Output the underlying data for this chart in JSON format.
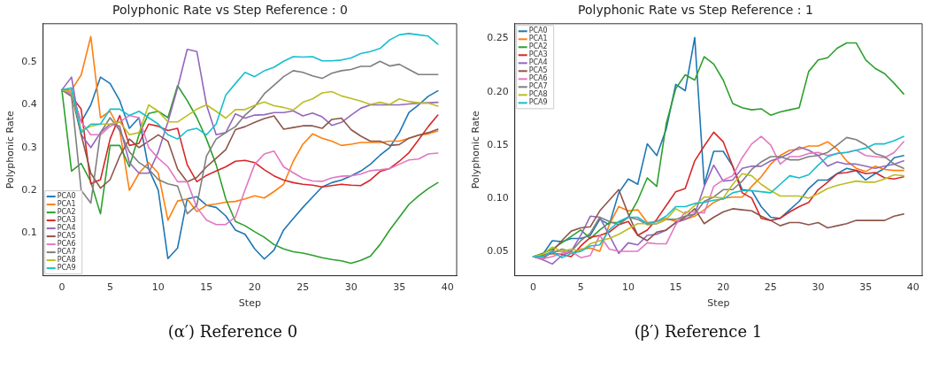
{
  "chart_data": [
    {
      "type": "line",
      "title": "Polyphonic Rate vs Step Reference : 0",
      "xlabel": "Step",
      "ylabel": "Polyphonic Rate",
      "annotations": [
        "(α′) Reference 0"
      ],
      "legend": "bottom left",
      "line_style": "solid",
      "x": [
        0,
        1,
        2,
        3,
        4,
        5,
        6,
        7,
        8,
        9,
        10,
        11,
        12,
        13,
        14,
        15,
        16,
        17,
        18,
        19,
        20,
        21,
        22,
        23,
        24,
        25,
        26,
        27,
        28,
        29,
        30,
        31,
        32,
        33,
        34,
        35,
        36,
        37,
        38,
        39
      ],
      "xlim": [
        -1.95,
        40.95
      ],
      "ylim": [
        0.0,
        0.59
      ],
      "xticks": [
        0,
        5,
        10,
        15,
        20,
        25,
        30,
        35,
        40
      ],
      "yticks": [
        0.1,
        0.2,
        0.3,
        0.4,
        0.5
      ],
      "series": [
        {
          "name": "PCA0",
          "color": "#1f77b4",
          "values": [
            0.435,
            0.43,
            0.36,
            0.4,
            0.465,
            0.45,
            0.41,
            0.345,
            0.37,
            0.25,
            0.2,
            0.04,
            0.065,
            0.18,
            0.185,
            0.165,
            0.16,
            0.14,
            0.107,
            0.097,
            0.063,
            0.039,
            0.06,
            0.107,
            0.134,
            0.16,
            0.184,
            0.208,
            0.218,
            0.224,
            0.234,
            0.245,
            0.261,
            0.282,
            0.3,
            0.335,
            0.382,
            0.4,
            0.42,
            0.433
          ]
        },
        {
          "name": "PCA1",
          "color": "#ff7f0e",
          "values": [
            0.435,
            0.435,
            0.47,
            0.56,
            0.37,
            0.385,
            0.34,
            0.2,
            0.24,
            0.265,
            0.24,
            0.13,
            0.175,
            0.18,
            0.15,
            0.165,
            0.168,
            0.172,
            0.174,
            0.18,
            0.187,
            0.182,
            0.197,
            0.214,
            0.268,
            0.308,
            0.332,
            0.322,
            0.315,
            0.305,
            0.308,
            0.312,
            0.312,
            0.312,
            0.315,
            0.315,
            0.322,
            0.329,
            0.332,
            0.339
          ]
        },
        {
          "name": "PCA2",
          "color": "#2ca02c",
          "values": [
            0.435,
            0.245,
            0.263,
            0.22,
            0.145,
            0.305,
            0.305,
            0.255,
            0.33,
            0.38,
            0.385,
            0.37,
            0.445,
            0.41,
            0.37,
            0.32,
            0.26,
            0.18,
            0.127,
            0.117,
            0.103,
            0.09,
            0.073,
            0.063,
            0.056,
            0.053,
            0.048,
            0.042,
            0.038,
            0.035,
            0.029,
            0.036,
            0.046,
            0.073,
            0.107,
            0.137,
            0.167,
            0.187,
            0.204,
            0.218
          ]
        },
        {
          "name": "PCA3",
          "color": "#d62728",
          "values": [
            0.435,
            0.42,
            0.39,
            0.215,
            0.225,
            0.32,
            0.375,
            0.305,
            0.31,
            0.355,
            0.35,
            0.34,
            0.345,
            0.26,
            0.22,
            0.235,
            0.245,
            0.255,
            0.268,
            0.27,
            0.265,
            0.248,
            0.234,
            0.224,
            0.218,
            0.214,
            0.212,
            0.208,
            0.211,
            0.214,
            0.212,
            0.211,
            0.224,
            0.244,
            0.251,
            0.268,
            0.288,
            0.318,
            0.349,
            0.376
          ]
        },
        {
          "name": "PCA4",
          "color": "#9467bd",
          "values": [
            0.435,
            0.465,
            0.33,
            0.3,
            0.335,
            0.355,
            0.35,
            0.265,
            0.24,
            0.24,
            0.29,
            0.36,
            0.44,
            0.53,
            0.525,
            0.4,
            0.33,
            0.335,
            0.379,
            0.369,
            0.376,
            0.377,
            0.382,
            0.382,
            0.386,
            0.374,
            0.381,
            0.372,
            0.352,
            0.359,
            0.376,
            0.392,
            0.4,
            0.4,
            0.4,
            0.4,
            0.402,
            0.404,
            0.405,
            0.406
          ]
        },
        {
          "name": "PCA5",
          "color": "#8c564b",
          "values": [
            0.435,
            0.425,
            0.33,
            0.24,
            0.205,
            0.225,
            0.28,
            0.32,
            0.3,
            0.315,
            0.33,
            0.315,
            0.25,
            0.22,
            0.23,
            0.255,
            0.275,
            0.295,
            0.342,
            0.349,
            0.359,
            0.368,
            0.374,
            0.343,
            0.347,
            0.351,
            0.351,
            0.345,
            0.366,
            0.369,
            0.342,
            0.327,
            0.315,
            0.315,
            0.305,
            0.307,
            0.322,
            0.329,
            0.335,
            0.343
          ]
        },
        {
          "name": "PCA6",
          "color": "#e377c2",
          "values": [
            0.435,
            0.425,
            0.36,
            0.33,
            0.33,
            0.35,
            0.36,
            0.375,
            0.37,
            0.3,
            0.275,
            0.255,
            0.22,
            0.22,
            0.16,
            0.13,
            0.12,
            0.12,
            0.137,
            0.201,
            0.261,
            0.285,
            0.292,
            0.255,
            0.241,
            0.228,
            0.222,
            0.221,
            0.229,
            0.233,
            0.234,
            0.238,
            0.246,
            0.248,
            0.251,
            0.261,
            0.271,
            0.273,
            0.285,
            0.287
          ]
        },
        {
          "name": "PCA7",
          "color": "#7f7f7f",
          "values": [
            0.435,
            0.42,
            0.2,
            0.17,
            0.335,
            0.37,
            0.34,
            0.29,
            0.265,
            0.25,
            0.225,
            0.215,
            0.21,
            0.145,
            0.165,
            0.28,
            0.32,
            0.335,
            0.349,
            0.376,
            0.396,
            0.426,
            0.446,
            0.466,
            0.48,
            0.476,
            0.468,
            0.462,
            0.474,
            0.48,
            0.483,
            0.49,
            0.49,
            0.502,
            0.491,
            0.495,
            0.483,
            0.471,
            0.471,
            0.471
          ]
        },
        {
          "name": "PCA8",
          "color": "#bcbd22",
          "values": [
            0.435,
            0.43,
            0.34,
            0.35,
            0.355,
            0.355,
            0.36,
            0.33,
            0.335,
            0.4,
            0.385,
            0.36,
            0.36,
            0.375,
            0.39,
            0.4,
            0.385,
            0.369,
            0.389,
            0.389,
            0.399,
            0.407,
            0.398,
            0.394,
            0.388,
            0.406,
            0.414,
            0.428,
            0.431,
            0.421,
            0.415,
            0.409,
            0.401,
            0.406,
            0.401,
            0.414,
            0.408,
            0.405,
            0.404,
            0.397
          ]
        },
        {
          "name": "PCA9",
          "color": "#17becf",
          "values": [
            0.435,
            0.44,
            0.335,
            0.355,
            0.355,
            0.39,
            0.39,
            0.375,
            0.385,
            0.37,
            0.355,
            0.33,
            0.32,
            0.34,
            0.345,
            0.33,
            0.355,
            0.423,
            0.45,
            0.476,
            0.466,
            0.48,
            0.488,
            0.502,
            0.513,
            0.512,
            0.513,
            0.503,
            0.503,
            0.505,
            0.51,
            0.52,
            0.525,
            0.532,
            0.552,
            0.564,
            0.567,
            0.564,
            0.561,
            0.542
          ]
        }
      ]
    },
    {
      "type": "line",
      "title": "Polyphonic Rate vs Step Reference : 1",
      "xlabel": "Step",
      "ylabel": "Polyphonic Rate",
      "annotations": [
        "(β′) Reference 1"
      ],
      "legend": "top left",
      "line_style": "solid",
      "x": [
        0,
        1,
        2,
        3,
        4,
        5,
        6,
        7,
        8,
        9,
        10,
        11,
        12,
        13,
        14,
        15,
        16,
        17,
        18,
        19,
        20,
        21,
        22,
        23,
        24,
        25,
        26,
        27,
        28,
        29,
        30,
        31,
        32,
        33,
        34,
        35,
        36,
        37,
        38,
        39
      ],
      "xlim": [
        -1.95,
        40.95
      ],
      "ylim": [
        0.027,
        0.264
      ],
      "xticks": [
        0,
        5,
        10,
        15,
        20,
        25,
        30,
        35,
        40
      ],
      "yticks": [
        0.05,
        {
          "value": 0.1,
          "label": "0.10"
        },
        0.15,
        {
          "value": 0.2,
          "label": "0.20"
        },
        0.25
      ],
      "series": [
        {
          "name": "PCA0",
          "color": "#1f77b4",
          "values": [
            0.045,
            0.047,
            0.06,
            0.059,
            0.062,
            0.062,
            0.065,
            0.08,
            0.075,
            0.105,
            0.118,
            0.113,
            0.151,
            0.14,
            0.165,
            0.207,
            0.201,
            0.251,
            0.113,
            0.144,
            0.144,
            0.13,
            0.108,
            0.107,
            0.092,
            0.082,
            0.081,
            0.089,
            0.097,
            0.109,
            0.117,
            0.117,
            0.123,
            0.128,
            0.126,
            0.117,
            0.123,
            0.128,
            0.138,
            0.14
          ]
        },
        {
          "name": "PCA1",
          "color": "#ff7f0e",
          "values": [
            0.045,
            0.046,
            0.05,
            0.05,
            0.048,
            0.052,
            0.053,
            0.05,
            0.075,
            0.092,
            0.088,
            0.089,
            0.077,
            0.078,
            0.081,
            0.078,
            0.08,
            0.083,
            0.089,
            0.096,
            0.1,
            0.101,
            0.101,
            0.111,
            0.12,
            0.132,
            0.14,
            0.145,
            0.146,
            0.149,
            0.149,
            0.153,
            0.146,
            0.135,
            0.128,
            0.125,
            0.13,
            0.127,
            0.126,
            0.126
          ]
        },
        {
          "name": "PCA2",
          "color": "#2ca02c",
          "values": [
            0.045,
            0.048,
            0.052,
            0.058,
            0.064,
            0.07,
            0.062,
            0.07,
            0.077,
            0.077,
            0.082,
            0.098,
            0.119,
            0.111,
            0.17,
            0.203,
            0.216,
            0.211,
            0.233,
            0.226,
            0.211,
            0.189,
            0.185,
            0.183,
            0.184,
            0.178,
            0.181,
            0.183,
            0.185,
            0.219,
            0.23,
            0.232,
            0.241,
            0.246,
            0.246,
            0.23,
            0.222,
            0.217,
            0.208,
            0.198
          ]
        },
        {
          "name": "PCA3",
          "color": "#d62728",
          "values": [
            0.045,
            0.046,
            0.048,
            0.047,
            0.045,
            0.055,
            0.063,
            0.065,
            0.068,
            0.075,
            0.078,
            0.065,
            0.07,
            0.08,
            0.093,
            0.106,
            0.109,
            0.135,
            0.149,
            0.162,
            0.153,
            0.13,
            0.105,
            0.1,
            0.081,
            0.079,
            0.081,
            0.087,
            0.092,
            0.096,
            0.108,
            0.115,
            0.123,
            0.124,
            0.126,
            0.123,
            0.124,
            0.119,
            0.118,
            0.12
          ]
        },
        {
          "name": "PCA4",
          "color": "#9467bd",
          "values": [
            0.045,
            0.042,
            0.038,
            0.046,
            0.05,
            0.065,
            0.083,
            0.082,
            0.065,
            0.048,
            0.058,
            0.056,
            0.065,
            0.066,
            0.07,
            0.077,
            0.08,
            0.085,
            0.111,
            0.131,
            0.116,
            0.117,
            0.128,
            0.13,
            0.13,
            0.135,
            0.138,
            0.142,
            0.148,
            0.145,
            0.14,
            0.13,
            0.134,
            0.132,
            0.132,
            0.13,
            0.128,
            0.13,
            0.132,
            0.135
          ]
        },
        {
          "name": "PCA5",
          "color": "#8c564b",
          "values": [
            0.045,
            0.043,
            0.05,
            0.06,
            0.069,
            0.072,
            0.073,
            0.088,
            0.098,
            0.108,
            0.085,
            0.065,
            0.06,
            0.068,
            0.07,
            0.077,
            0.082,
            0.09,
            0.076,
            0.082,
            0.087,
            0.09,
            0.089,
            0.088,
            0.083,
            0.079,
            0.074,
            0.077,
            0.077,
            0.075,
            0.077,
            0.072,
            0.074,
            0.076,
            0.079,
            0.079,
            0.079,
            0.079,
            0.083,
            0.085
          ]
        },
        {
          "name": "PCA6",
          "color": "#e377c2",
          "values": [
            0.045,
            0.043,
            0.045,
            0.048,
            0.05,
            0.044,
            0.046,
            0.065,
            0.052,
            0.05,
            0.05,
            0.05,
            0.058,
            0.057,
            0.057,
            0.075,
            0.087,
            0.087,
            0.086,
            0.111,
            0.117,
            0.121,
            0.138,
            0.151,
            0.158,
            0.15,
            0.132,
            0.139,
            0.139,
            0.142,
            0.143,
            0.14,
            0.142,
            0.143,
            0.145,
            0.14,
            0.139,
            0.138,
            0.143,
            0.153
          ]
        },
        {
          "name": "PCA7",
          "color": "#7f7f7f",
          "values": [
            0.045,
            0.045,
            0.048,
            0.052,
            0.05,
            0.06,
            0.067,
            0.082,
            0.078,
            0.075,
            0.082,
            0.08,
            0.075,
            0.076,
            0.08,
            0.08,
            0.083,
            0.085,
            0.097,
            0.101,
            0.108,
            0.108,
            0.116,
            0.127,
            0.134,
            0.139,
            0.139,
            0.136,
            0.136,
            0.139,
            0.14,
            0.143,
            0.15,
            0.157,
            0.155,
            0.15,
            0.142,
            0.139,
            0.132,
            0.128
          ]
        },
        {
          "name": "PCA8",
          "color": "#bcbd22",
          "values": [
            0.045,
            0.047,
            0.054,
            0.05,
            0.052,
            0.05,
            0.057,
            0.06,
            0.062,
            0.066,
            0.071,
            0.076,
            0.076,
            0.076,
            0.08,
            0.09,
            0.085,
            0.093,
            0.101,
            0.101,
            0.1,
            0.113,
            0.123,
            0.121,
            0.113,
            0.107,
            0.102,
            0.102,
            0.102,
            0.1,
            0.104,
            0.109,
            0.112,
            0.114,
            0.116,
            0.115,
            0.115,
            0.118,
            0.122,
            0.121
          ]
        },
        {
          "name": "PCA9",
          "color": "#17becf",
          "values": [
            0.045,
            0.045,
            0.05,
            0.044,
            0.048,
            0.05,
            0.055,
            0.056,
            0.07,
            0.078,
            0.082,
            0.082,
            0.076,
            0.078,
            0.083,
            0.092,
            0.092,
            0.095,
            0.096,
            0.098,
            0.099,
            0.105,
            0.107,
            0.107,
            0.106,
            0.105,
            0.113,
            0.121,
            0.119,
            0.122,
            0.131,
            0.139,
            0.142,
            0.143,
            0.145,
            0.147,
            0.151,
            0.151,
            0.154,
            0.158
          ]
        }
      ]
    }
  ]
}
